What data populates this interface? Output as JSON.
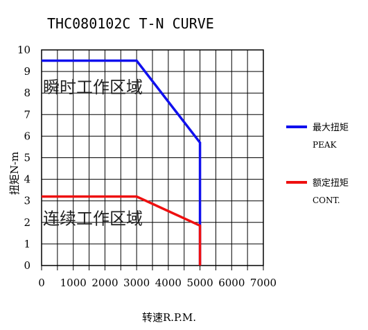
{
  "chart_data": {
    "type": "line",
    "title": "THC080102C T-N CURVE",
    "xlabel": "转速R.P.M.",
    "ylabel": "扭矩N-m",
    "xlim": [
      0,
      7000
    ],
    "ylim": [
      0,
      10
    ],
    "xticks": [
      "0",
      "1000",
      "2000",
      "3000",
      "4000",
      "5000",
      "6000",
      "7000"
    ],
    "yticks": [
      "0",
      "1",
      "2",
      "3",
      "4",
      "5",
      "6",
      "7",
      "8",
      "9",
      "10"
    ],
    "grid": true,
    "legend_position": "right",
    "region_labels": [
      {
        "text": "瞬时工作区域",
        "x": 0,
        "y": 8.3
      },
      {
        "text": "连续工作区域",
        "x": 0,
        "y": 2.2
      }
    ],
    "series": [
      {
        "name": "最大扭矩",
        "name_sub": "PEAK",
        "color": "#1010ee",
        "x": [
          0,
          3000,
          5000,
          5000
        ],
        "y": [
          9.5,
          9.5,
          5.7,
          0
        ]
      },
      {
        "name": "额定扭矩",
        "name_sub": "CONT.",
        "color": "#ee1010",
        "x": [
          0,
          3000,
          5000,
          5000
        ],
        "y": [
          3.2,
          3.2,
          1.85,
          0
        ]
      }
    ]
  }
}
